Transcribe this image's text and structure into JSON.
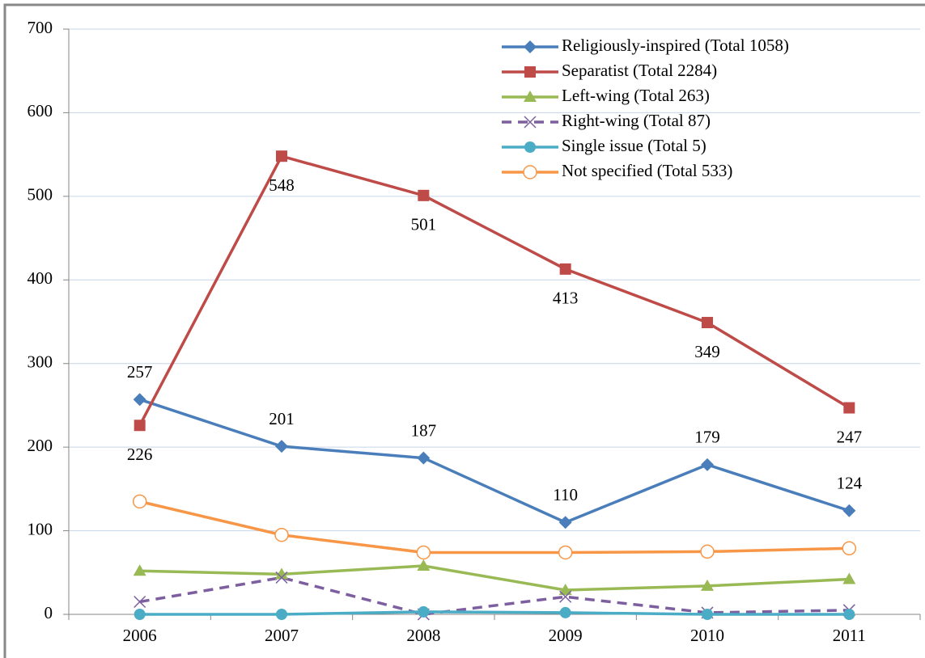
{
  "chart_data": {
    "type": "line",
    "categories": [
      "2006",
      "2007",
      "2008",
      "2009",
      "2010",
      "2011"
    ],
    "ylim": [
      0,
      700
    ],
    "yticks": [
      0,
      100,
      200,
      300,
      400,
      500,
      600,
      700
    ],
    "grid": true,
    "legend": "top-right",
    "series": [
      {
        "name": "Religiously-inspired (Total 1058)",
        "color": "#4a7ebb",
        "marker": "diamond",
        "data_labels": "above",
        "values": [
          257,
          201,
          187,
          110,
          179,
          124
        ]
      },
      {
        "name": "Separatist (Total 2284)",
        "color": "#be4b48",
        "marker": "square",
        "data_labels": "below",
        "values": [
          226,
          548,
          501,
          413,
          349,
          247
        ]
      },
      {
        "name": "Left-wing (Total 263)",
        "color": "#98b954",
        "marker": "triangle",
        "values": [
          52,
          48,
          58,
          29,
          34,
          42
        ]
      },
      {
        "name": "Right-wing (Total 87)",
        "color": "#7d5fa0",
        "marker": "x",
        "dashed": true,
        "values": [
          15,
          44,
          0,
          21,
          2,
          5
        ]
      },
      {
        "name": "Single issue (Total 5)",
        "color": "#4bacc6",
        "marker": "circle",
        "values": [
          0,
          0,
          3,
          2,
          0,
          0
        ]
      },
      {
        "name": "Not specified (Total 533)",
        "color": "#f79646",
        "marker": "circle-open",
        "values": [
          135,
          95,
          74,
          74,
          75,
          79
        ]
      }
    ]
  }
}
